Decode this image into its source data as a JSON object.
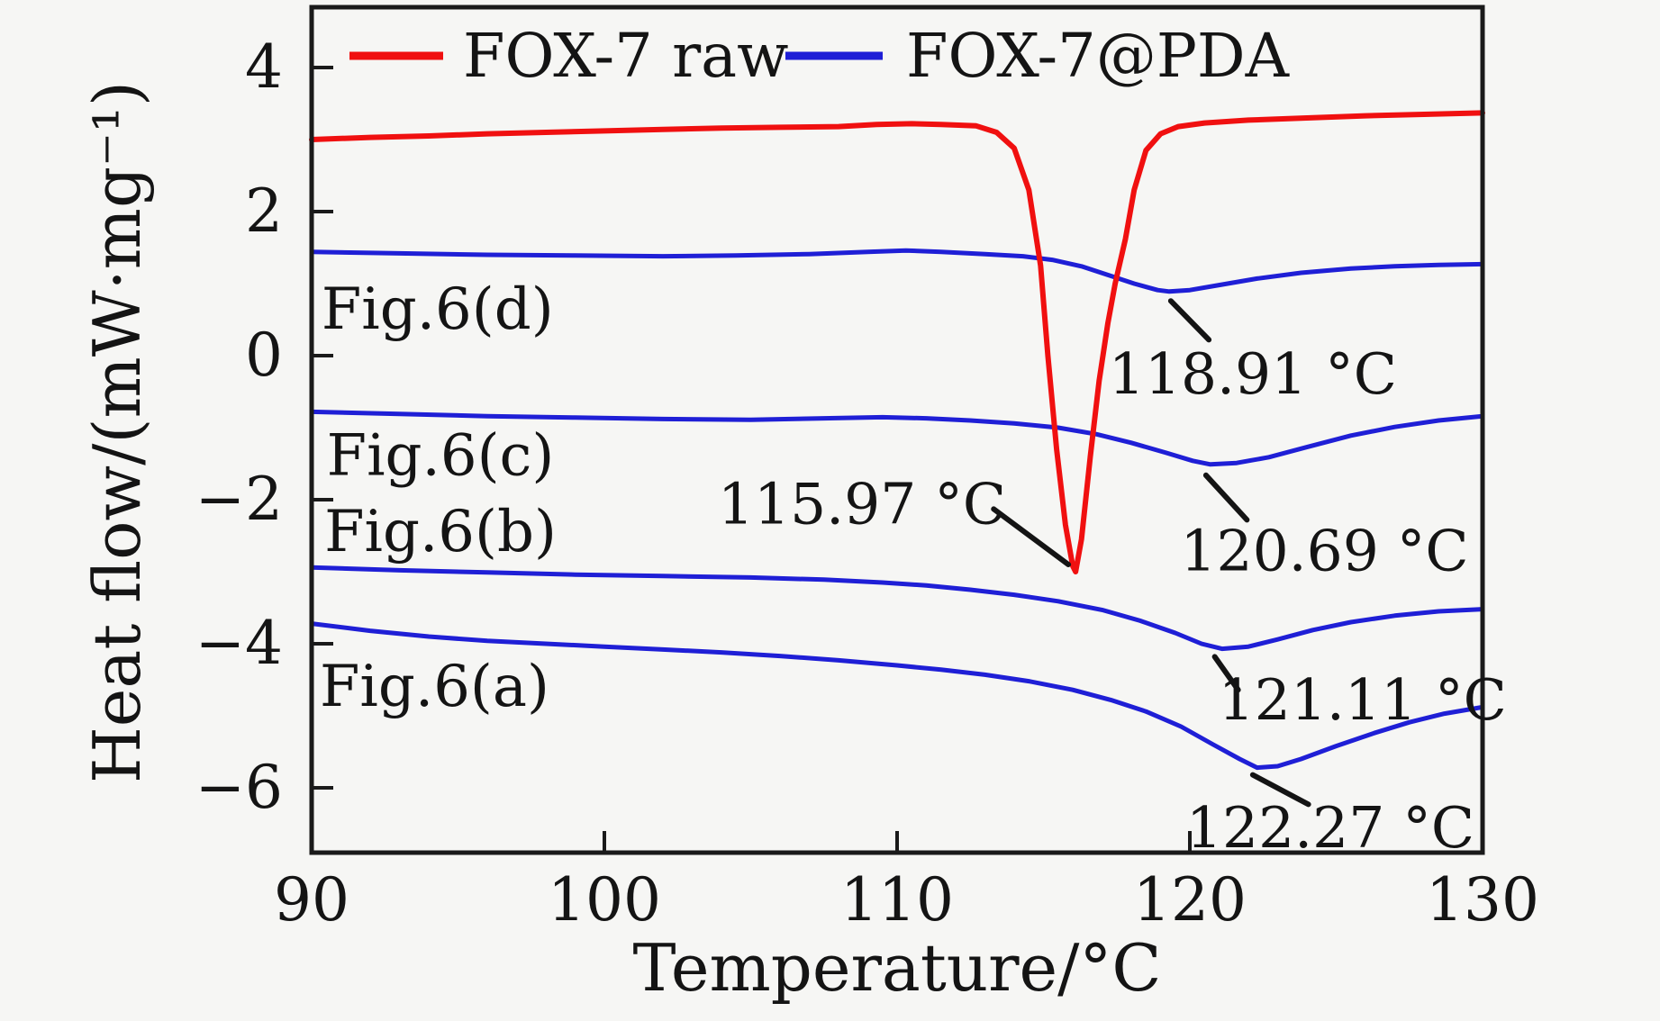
{
  "figure": {
    "background": "#f6f6f4",
    "border_color": "#1a1a1a",
    "text_color": "#141414"
  },
  "chart_data": {
    "type": "line",
    "title": "",
    "xlabel": "Temperature/°C",
    "ylabel": "Heat flow/(mW·mg⁻¹)",
    "xlim": [
      90,
      130
    ],
    "ylim": [
      -6.9,
      4.81
    ],
    "x_ticks": [
      90,
      100,
      110,
      120,
      130
    ],
    "y_ticks": [
      4,
      2,
      0,
      -2,
      -4,
      -6
    ],
    "grid": false,
    "legend": {
      "position": "top-inside",
      "entries": [
        {
          "label": "FOX-7 raw",
          "color": "#f01010"
        },
        {
          "label": "FOX-7@PDA",
          "color": "#1f1fd6"
        }
      ]
    },
    "series": [
      {
        "name": "FOX-7@PDA (a)",
        "color": "#1f1fd6",
        "peak_label": "122.27 °C",
        "points": [
          [
            90,
            -3.72
          ],
          [
            92,
            -3.82
          ],
          [
            94,
            -3.9
          ],
          [
            96,
            -3.96
          ],
          [
            98,
            -4.0
          ],
          [
            100,
            -4.04
          ],
          [
            102,
            -4.08
          ],
          [
            104,
            -4.12
          ],
          [
            106,
            -4.17
          ],
          [
            108,
            -4.23
          ],
          [
            110,
            -4.3
          ],
          [
            111.5,
            -4.36
          ],
          [
            113,
            -4.43
          ],
          [
            114.5,
            -4.52
          ],
          [
            116,
            -4.64
          ],
          [
            117.3,
            -4.78
          ],
          [
            118.5,
            -4.94
          ],
          [
            119.7,
            -5.15
          ],
          [
            120.8,
            -5.4
          ],
          [
            121.7,
            -5.6
          ],
          [
            122.3,
            -5.72
          ],
          [
            123,
            -5.7
          ],
          [
            123.8,
            -5.6
          ],
          [
            125,
            -5.42
          ],
          [
            126.3,
            -5.24
          ],
          [
            127.5,
            -5.09
          ],
          [
            128.7,
            -4.97
          ],
          [
            130,
            -4.88
          ]
        ]
      },
      {
        "name": "FOX-7@PDA (b)",
        "color": "#1f1fd6",
        "peak_label": "121.11 °C",
        "points": [
          [
            90,
            -2.94
          ],
          [
            93,
            -2.98
          ],
          [
            96,
            -3.01
          ],
          [
            99,
            -3.04
          ],
          [
            102,
            -3.06
          ],
          [
            105,
            -3.08
          ],
          [
            107.5,
            -3.11
          ],
          [
            109.5,
            -3.15
          ],
          [
            111,
            -3.19
          ],
          [
            112.5,
            -3.25
          ],
          [
            114,
            -3.32
          ],
          [
            115.5,
            -3.41
          ],
          [
            117,
            -3.53
          ],
          [
            118.3,
            -3.68
          ],
          [
            119.5,
            -3.85
          ],
          [
            120.4,
            -4.0
          ],
          [
            121.1,
            -4.07
          ],
          [
            122,
            -4.04
          ],
          [
            123,
            -3.94
          ],
          [
            124.2,
            -3.81
          ],
          [
            125.5,
            -3.7
          ],
          [
            127,
            -3.61
          ],
          [
            128.5,
            -3.55
          ],
          [
            130,
            -3.52
          ]
        ]
      },
      {
        "name": "FOX-7@PDA (c)",
        "color": "#1f1fd6",
        "peak_label": "120.69 °C",
        "points": [
          [
            90,
            -0.78
          ],
          [
            93,
            -0.81
          ],
          [
            96,
            -0.84
          ],
          [
            99,
            -0.86
          ],
          [
            102,
            -0.88
          ],
          [
            105,
            -0.89
          ],
          [
            107.5,
            -0.87
          ],
          [
            109.5,
            -0.855
          ],
          [
            111,
            -0.87
          ],
          [
            112.5,
            -0.9
          ],
          [
            114,
            -0.94
          ],
          [
            115.5,
            -1.0
          ],
          [
            116.8,
            -1.09
          ],
          [
            118,
            -1.21
          ],
          [
            119.2,
            -1.35
          ],
          [
            120.1,
            -1.46
          ],
          [
            120.7,
            -1.51
          ],
          [
            121.6,
            -1.49
          ],
          [
            122.7,
            -1.41
          ],
          [
            124,
            -1.27
          ],
          [
            125.5,
            -1.11
          ],
          [
            127,
            -0.99
          ],
          [
            128.5,
            -0.9
          ],
          [
            130,
            -0.84
          ]
        ]
      },
      {
        "name": "FOX-7@PDA (d)",
        "color": "#1f1fd6",
        "peak_label": "118.91 °C",
        "points": [
          [
            90,
            1.44
          ],
          [
            93,
            1.42
          ],
          [
            96,
            1.4
          ],
          [
            99,
            1.39
          ],
          [
            102,
            1.38
          ],
          [
            104.5,
            1.39
          ],
          [
            107,
            1.41
          ],
          [
            109,
            1.44
          ],
          [
            110.3,
            1.46
          ],
          [
            111.5,
            1.44
          ],
          [
            113,
            1.41
          ],
          [
            114.3,
            1.38
          ],
          [
            115.3,
            1.33
          ],
          [
            116.3,
            1.24
          ],
          [
            117.2,
            1.12
          ],
          [
            118.1,
            1.0
          ],
          [
            118.9,
            0.91
          ],
          [
            119.3,
            0.89
          ],
          [
            120,
            0.91
          ],
          [
            121,
            0.98
          ],
          [
            122.3,
            1.07
          ],
          [
            123.8,
            1.15
          ],
          [
            125.5,
            1.21
          ],
          [
            127,
            1.24
          ],
          [
            128.5,
            1.26
          ],
          [
            130,
            1.27
          ]
        ]
      },
      {
        "name": "FOX-7 raw",
        "color": "#f01010",
        "peak_label": "115.97 °C",
        "points": [
          [
            90,
            3.0
          ],
          [
            92,
            3.03
          ],
          [
            94,
            3.05
          ],
          [
            96,
            3.08
          ],
          [
            98,
            3.1
          ],
          [
            100,
            3.12
          ],
          [
            102,
            3.14
          ],
          [
            104,
            3.16
          ],
          [
            106,
            3.17
          ],
          [
            108,
            3.18
          ],
          [
            109.3,
            3.21
          ],
          [
            110.5,
            3.22
          ],
          [
            111.5,
            3.21
          ],
          [
            112.7,
            3.19
          ],
          [
            113.4,
            3.1
          ],
          [
            114.0,
            2.88
          ],
          [
            114.5,
            2.3
          ],
          [
            114.9,
            1.25
          ],
          [
            115.15,
            0.0
          ],
          [
            115.45,
            -1.3
          ],
          [
            115.75,
            -2.35
          ],
          [
            116.0,
            -2.92
          ],
          [
            116.1,
            -3.0
          ],
          [
            116.3,
            -2.55
          ],
          [
            116.6,
            -1.4
          ],
          [
            116.9,
            -0.35
          ],
          [
            117.2,
            0.45
          ],
          [
            117.45,
            1.0
          ],
          [
            117.8,
            1.62
          ],
          [
            118.1,
            2.3
          ],
          [
            118.5,
            2.85
          ],
          [
            119.0,
            3.08
          ],
          [
            119.6,
            3.18
          ],
          [
            120.5,
            3.23
          ],
          [
            122,
            3.27
          ],
          [
            124,
            3.3
          ],
          [
            126,
            3.33
          ],
          [
            128,
            3.35
          ],
          [
            130,
            3.37
          ]
        ]
      }
    ],
    "curve_labels": [
      {
        "text": "Fig.6(d)",
        "x": 94.3,
        "y": 0.65
      },
      {
        "text": "Fig.6(c)",
        "x": 94.4,
        "y": -1.38
      },
      {
        "text": "Fig.6(b)",
        "x": 94.4,
        "y": -2.44
      },
      {
        "text": "Fig.6(a)",
        "x": 94.2,
        "y": -4.59
      }
    ],
    "annotations": [
      {
        "text": "118.91 °C",
        "text_x": 122.15,
        "text_y": -0.26,
        "line": [
          [
            119.35,
            0.76
          ],
          [
            120.65,
            0.22
          ]
        ]
      },
      {
        "text": "115.97 °C",
        "text_x": 108.8,
        "text_y": -2.07,
        "line": [
          [
            113.3,
            -2.13
          ],
          [
            115.85,
            -2.9
          ]
        ]
      },
      {
        "text": "120.69 °C",
        "text_x": 124.6,
        "text_y": -2.72,
        "line": [
          [
            120.55,
            -1.66
          ],
          [
            121.95,
            -2.28
          ]
        ]
      },
      {
        "text": "121.11 °C",
        "text_x": 125.9,
        "text_y": -4.79,
        "line": [
          [
            120.85,
            -4.18
          ],
          [
            121.65,
            -4.64
          ]
        ]
      },
      {
        "text": "122.27 °C",
        "text_x": 124.8,
        "text_y": -6.56,
        "line": [
          [
            122.15,
            -5.82
          ],
          [
            124.05,
            -6.23
          ]
        ]
      }
    ]
  }
}
